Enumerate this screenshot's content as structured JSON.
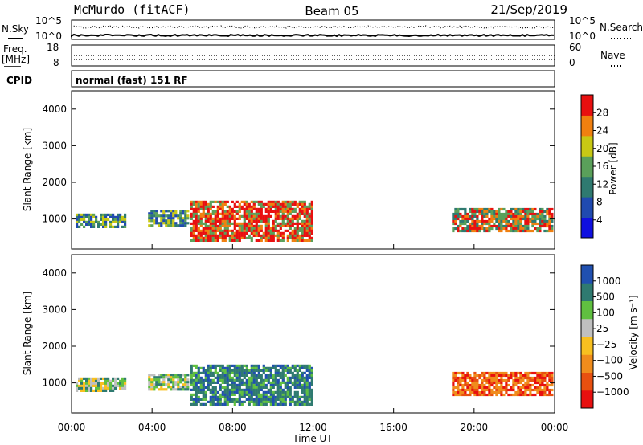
{
  "header": {
    "station": "McMurdo (fitACF)",
    "beam": "Beam 05",
    "date": "21/Sep/2019"
  },
  "status": {
    "nsky_label": "N.Sky",
    "nsky_ticks": [
      "10^5",
      "10^0"
    ],
    "nsearch_label": "N.Search",
    "nsearch_ticks": [
      "10^5",
      "10^0"
    ],
    "freq_label_1": "Freq.",
    "freq_label_2": "[MHz]",
    "freq_ticks": [
      "18",
      "8"
    ],
    "nave_label": "Nave",
    "nave_ticks": [
      "60",
      "0"
    ],
    "cpid_label": "CPID",
    "cpid_text": "normal (fast) 151 RF"
  },
  "chart_data": [
    {
      "type": "heatmap",
      "name": "power",
      "ylabel": "Slant Range [km]",
      "yticks": [
        "4000",
        "3000",
        "2000",
        "1000"
      ],
      "ylim": [
        180,
        4500
      ],
      "xlabel": "Time UT",
      "xticks": [
        "00:00",
        "04:00",
        "08:00",
        "12:00",
        "16:00",
        "20:00",
        "00:00"
      ],
      "xlim_hours": [
        0,
        24
      ],
      "colorbar": {
        "label": "Power [dB]",
        "ticks": [
          "28",
          "24",
          "20",
          "16",
          "12",
          "8",
          "4"
        ],
        "range": [
          0,
          30
        ],
        "colors": [
          "#1010e0",
          "#204ab0",
          "#2f7a70",
          "#5aa05a",
          "#c8c814",
          "#f08010",
          "#e81010"
        ]
      },
      "regions": [
        {
          "start": 0.2,
          "end": 2.7,
          "range": [
            800,
            1150
          ],
          "level": "low"
        },
        {
          "start": 3.8,
          "end": 5.8,
          "range": [
            800,
            1250
          ],
          "level": "low"
        },
        {
          "start": 5.9,
          "end": 11.9,
          "range": [
            400,
            1500
          ],
          "level": "high"
        },
        {
          "start": 18.9,
          "end": 23.9,
          "range": [
            700,
            1300
          ],
          "level": "mid"
        }
      ]
    },
    {
      "type": "heatmap",
      "name": "velocity",
      "ylabel": "Slant Range [km]",
      "yticks": [
        "4000",
        "3000",
        "2000",
        "1000"
      ],
      "ylim": [
        180,
        4500
      ],
      "xlabel": "Time UT",
      "xticks": [
        "00:00",
        "04:00",
        "08:00",
        "12:00",
        "16:00",
        "20:00",
        "00:00"
      ],
      "xlim_hours": [
        0,
        24
      ],
      "colorbar": {
        "label": "Velocity [m s⁻¹]",
        "ticks": [
          "1000",
          "500",
          "100",
          "25",
          "−25",
          "−100",
          "−500",
          "−1000"
        ],
        "range": [
          -1000,
          1000
        ],
        "colors": [
          "#e81010",
          "#e85010",
          "#f08c1c",
          "#f8c020",
          "#c0c0c0",
          "#60c040",
          "#2f7a70",
          "#2050b0"
        ]
      },
      "regions": [
        {
          "start": 0.2,
          "end": 2.7,
          "range": [
            800,
            1150
          ],
          "level": "green"
        },
        {
          "start": 3.8,
          "end": 5.8,
          "range": [
            800,
            1250
          ],
          "level": "green"
        },
        {
          "start": 5.9,
          "end": 11.9,
          "range": [
            400,
            1500
          ],
          "level": "teal"
        },
        {
          "start": 18.9,
          "end": 23.9,
          "range": [
            700,
            1300
          ],
          "level": "orange"
        }
      ]
    }
  ]
}
